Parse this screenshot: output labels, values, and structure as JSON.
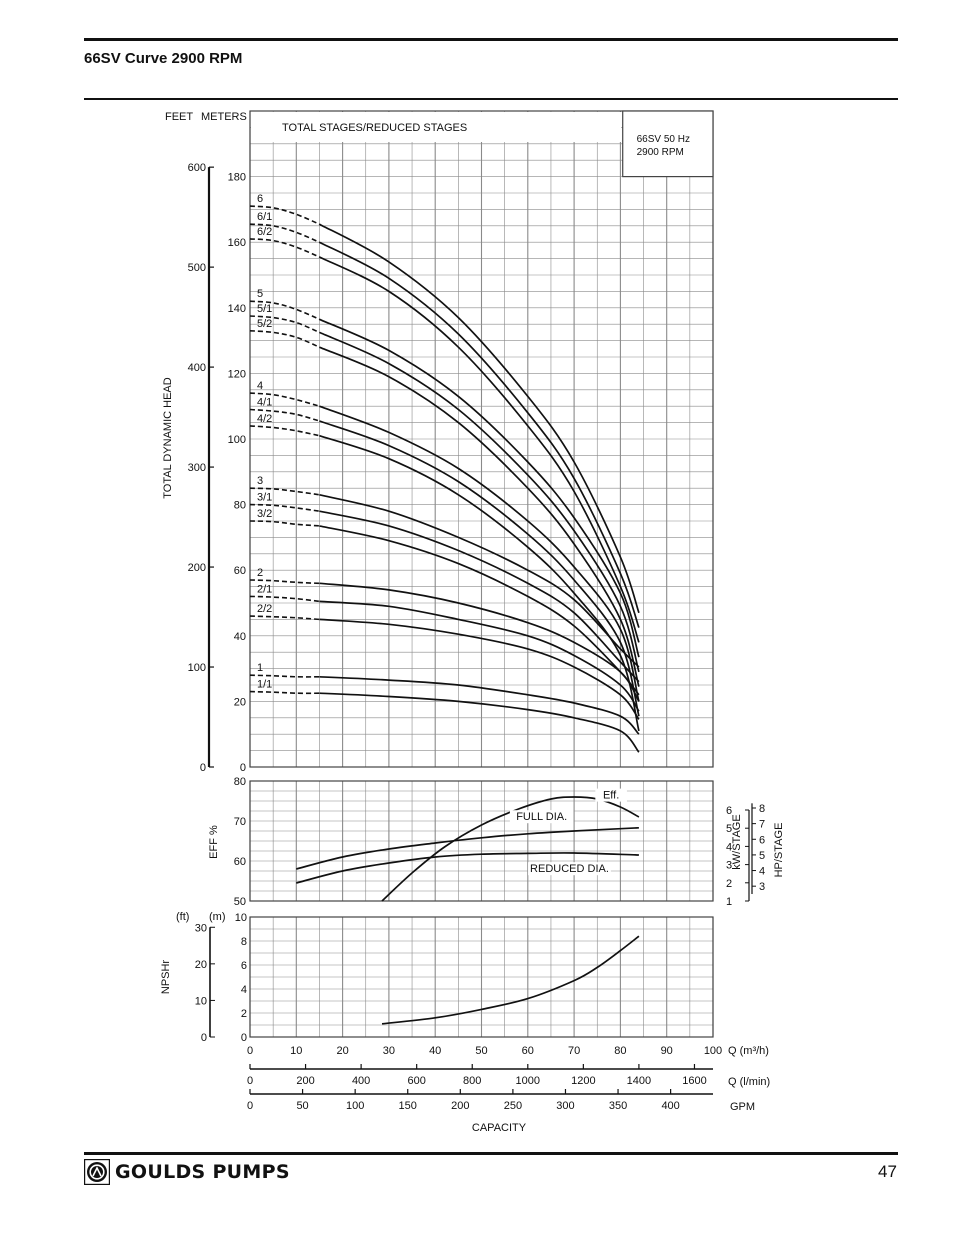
{
  "page": {
    "title": "66SV Curve 2900 RPM",
    "page_number": "47",
    "brand": "GOULDS PUMPS"
  },
  "colors": {
    "ink": "#111111",
    "grid": "#8a8a8a"
  },
  "icons": {
    "logo": "goulds-pumps-logo-icon"
  },
  "chart_data": [
    {
      "type": "line",
      "id": "head",
      "title": "",
      "info_box": [
        "66SV  50 Hz",
        "2900 RPM"
      ],
      "header_label": "TOTAL STAGES/REDUCED STAGES",
      "xlabel": "Q (m³/h)",
      "ylabel": "TOTAL DYNAMIC HEAD",
      "unit_labels": [
        "FEET",
        "METERS"
      ],
      "xlim": [
        0,
        100
      ],
      "ylim": [
        0,
        200
      ],
      "yticks_m": [
        0,
        20,
        40,
        60,
        80,
        100,
        120,
        140,
        160,
        180
      ],
      "yticks_ft": [
        0,
        100,
        200,
        300,
        400,
        500,
        600
      ],
      "grid": true,
      "series": [
        {
          "name": "6",
          "dashed_x": [
            0,
            5,
            10,
            15
          ],
          "dashed_y": [
            171,
            170.5,
            168.5,
            165.5
          ],
          "x": [
            15,
            30,
            45,
            60,
            70,
            80,
            84
          ],
          "y": [
            165.5,
            154,
            137,
            113,
            93,
            64,
            47
          ]
        },
        {
          "name": "6/1",
          "dashed_x": [
            0,
            5,
            10,
            15
          ],
          "dashed_y": [
            165.5,
            165,
            163,
            160
          ],
          "x": [
            15,
            30,
            45,
            60,
            70,
            80,
            84
          ],
          "y": [
            160,
            149,
            132,
            108,
            88,
            59,
            42.5
          ]
        },
        {
          "name": "6/2",
          "dashed_x": [
            0,
            5,
            10,
            15
          ],
          "dashed_y": [
            161,
            160.5,
            158.5,
            155.5
          ],
          "x": [
            15,
            30,
            45,
            60,
            70,
            80,
            84
          ],
          "y": [
            155.5,
            145,
            128,
            104,
            84,
            55,
            38
          ]
        },
        {
          "name": "5",
          "dashed_x": [
            0,
            5,
            10,
            15
          ],
          "dashed_y": [
            142,
            141.5,
            139.5,
            136.5
          ],
          "x": [
            15,
            30,
            45,
            60,
            70,
            80,
            84
          ],
          "y": [
            136.5,
            127,
            113,
            93,
            76,
            53,
            33.5
          ]
        },
        {
          "name": "5/1",
          "dashed_x": [
            0,
            5,
            10,
            15
          ],
          "dashed_y": [
            137.5,
            137,
            135.5,
            132.5
          ],
          "x": [
            15,
            30,
            45,
            60,
            70,
            80,
            84
          ],
          "y": [
            132.5,
            123,
            109,
            89,
            72,
            49,
            29
          ]
        },
        {
          "name": "5/2",
          "dashed_x": [
            0,
            5,
            10,
            15
          ],
          "dashed_y": [
            133,
            132.5,
            131,
            128
          ],
          "x": [
            15,
            30,
            45,
            60,
            70,
            80,
            84
          ],
          "y": [
            128,
            119,
            105,
            85,
            68,
            45,
            24.5
          ]
        },
        {
          "name": "4",
          "dashed_x": [
            0,
            5,
            10,
            15
          ],
          "dashed_y": [
            114,
            113.5,
            112,
            110
          ],
          "x": [
            15,
            30,
            45,
            60,
            70,
            80,
            84
          ],
          "y": [
            110,
            102,
            91,
            75,
            61,
            42,
            20
          ]
        },
        {
          "name": "4/1",
          "dashed_x": [
            0,
            5,
            10,
            15
          ],
          "dashed_y": [
            109,
            108.5,
            107.5,
            105.5
          ],
          "x": [
            15,
            30,
            45,
            60,
            70,
            80,
            84
          ],
          "y": [
            105.5,
            98,
            87,
            71,
            57,
            38,
            15.5
          ]
        },
        {
          "name": "4/2",
          "dashed_x": [
            0,
            5,
            10,
            15
          ],
          "dashed_y": [
            104,
            103.5,
            102.5,
            101
          ],
          "x": [
            15,
            30,
            45,
            60,
            70,
            80,
            84
          ],
          "y": [
            101,
            94,
            83,
            67,
            53,
            34,
            11
          ]
        },
        {
          "name": "3",
          "dashed_x": [
            0,
            5,
            10,
            15
          ],
          "dashed_y": [
            85,
            84.8,
            84,
            83
          ],
          "x": [
            15,
            30,
            45,
            60,
            70,
            80,
            84
          ],
          "y": [
            83,
            78,
            70,
            60,
            51,
            36,
            30.5
          ]
        },
        {
          "name": "3/1",
          "dashed_x": [
            0,
            5,
            10,
            15
          ],
          "dashed_y": [
            80,
            79.8,
            79,
            78
          ],
          "x": [
            15,
            30,
            45,
            60,
            70,
            80,
            84
          ],
          "y": [
            78,
            73.5,
            66,
            56,
            47,
            32,
            26
          ]
        },
        {
          "name": "3/2",
          "dashed_x": [
            0,
            5,
            10,
            15
          ],
          "dashed_y": [
            75,
            74.8,
            74,
            73.5
          ],
          "x": [
            15,
            30,
            45,
            60,
            70,
            80,
            84
          ],
          "y": [
            73.5,
            69,
            62,
            52,
            43,
            29,
            22
          ]
        },
        {
          "name": "2",
          "dashed_x": [
            0,
            5,
            10,
            15
          ],
          "dashed_y": [
            57,
            56.8,
            56.3,
            56
          ],
          "x": [
            15,
            30,
            45,
            60,
            70,
            80,
            84
          ],
          "y": [
            56,
            54,
            50,
            44,
            38,
            29,
            20
          ]
        },
        {
          "name": "2/1",
          "dashed_x": [
            0,
            5,
            10,
            15
          ],
          "dashed_y": [
            52,
            51.8,
            51.3,
            50.5
          ],
          "x": [
            15,
            30,
            45,
            60,
            70,
            80,
            84
          ],
          "y": [
            50.5,
            49,
            45,
            40,
            34,
            25,
            17
          ]
        },
        {
          "name": "2/2",
          "dashed_x": [
            0,
            5,
            10,
            15
          ],
          "dashed_y": [
            46,
            45.8,
            45.5,
            45
          ],
          "x": [
            15,
            30,
            45,
            60,
            70,
            80,
            84
          ],
          "y": [
            45,
            43.5,
            40.5,
            36,
            30.5,
            22,
            14.5
          ]
        },
        {
          "name": "1",
          "dashed_x": [
            0,
            5,
            10,
            15
          ],
          "dashed_y": [
            28,
            27.8,
            27.5,
            27.5
          ],
          "x": [
            15,
            30,
            45,
            60,
            70,
            80,
            84
          ],
          "y": [
            27.5,
            26.5,
            25,
            22,
            19.5,
            15.5,
            10
          ]
        },
        {
          "name": "1/1",
          "dashed_x": [
            0,
            5,
            10,
            15
          ],
          "dashed_y": [
            23,
            22.8,
            22.5,
            22.5
          ],
          "x": [
            15,
            30,
            45,
            60,
            70,
            80,
            84
          ],
          "y": [
            22.5,
            21.5,
            20,
            17.5,
            15,
            11,
            4.5
          ]
        }
      ]
    },
    {
      "type": "line",
      "id": "efficiency",
      "ylabel": "EFF %",
      "ylim": [
        50,
        80
      ],
      "yticks": [
        50,
        60,
        70,
        80
      ],
      "grid": true,
      "right_axes": {
        "kw_label": "kW/STAGE",
        "kw_ticks": [
          1,
          2,
          3,
          4,
          5,
          6
        ],
        "kw_range": [
          1,
          6
        ],
        "hp_label": "HP/STAGE",
        "hp_ticks": [
          3,
          4,
          5,
          6,
          7,
          8
        ],
        "hp_range": [
          2.5,
          8
        ]
      },
      "annotations": [
        {
          "text": "Eff.",
          "x": 78,
          "y": 75.6
        },
        {
          "text": "FULL DIA.",
          "x": 63,
          "y": 70.2
        },
        {
          "text": "REDUCED DIA.",
          "x": 69,
          "y": 57.2
        }
      ],
      "series": [
        {
          "role": "efficiency",
          "x": [
            28.5,
            35,
            42,
            50,
            58,
            65,
            70,
            75,
            80,
            84
          ],
          "y": [
            50,
            57,
            63.5,
            69,
            73,
            75.5,
            76,
            75.5,
            73.5,
            71
          ]
        },
        {
          "role": "full-dia-power",
          "x": [
            10,
            20,
            30,
            40,
            50,
            60,
            70,
            84
          ],
          "y": [
            58,
            61,
            63,
            64.5,
            65.8,
            66.8,
            67.5,
            68.3
          ]
        },
        {
          "role": "reduced-dia-power",
          "x": [
            10,
            20,
            30,
            40,
            50,
            60,
            70,
            84
          ],
          "y": [
            54.5,
            57.5,
            59.5,
            61,
            61.7,
            61.9,
            62,
            61.5
          ]
        }
      ]
    },
    {
      "type": "line",
      "id": "npshr",
      "ylabel": "NPSHr",
      "unit_labels": [
        "(ft)",
        "(m)"
      ],
      "ylim": [
        0,
        10
      ],
      "yticks_m": [
        0,
        2,
        4,
        6,
        8,
        10
      ],
      "yticks_ft": [
        0,
        10,
        20,
        30
      ],
      "grid": true,
      "series": [
        {
          "role": "npshr",
          "x": [
            28.5,
            40,
            50,
            60,
            70,
            75,
            80,
            84
          ],
          "y": [
            1.1,
            1.6,
            2.3,
            3.2,
            4.7,
            5.8,
            7.2,
            8.4
          ]
        }
      ]
    }
  ],
  "axes": {
    "x_m3h": {
      "label": "Q (m³/h)",
      "ticks": [
        0,
        10,
        20,
        30,
        40,
        50,
        60,
        70,
        80,
        90,
        100
      ],
      "range": [
        0,
        100
      ]
    },
    "x_lmin": {
      "label": "Q (l/min)",
      "ticks": [
        0,
        200,
        400,
        600,
        800,
        1000,
        1200,
        1400,
        1600
      ],
      "range": [
        0,
        1666.7
      ]
    },
    "x_gpm": {
      "label": "GPM",
      "ticks": [
        0,
        50,
        100,
        150,
        200,
        250,
        300,
        350,
        400
      ],
      "range": [
        0,
        440.3
      ]
    },
    "capacity_label": "CAPACITY"
  }
}
